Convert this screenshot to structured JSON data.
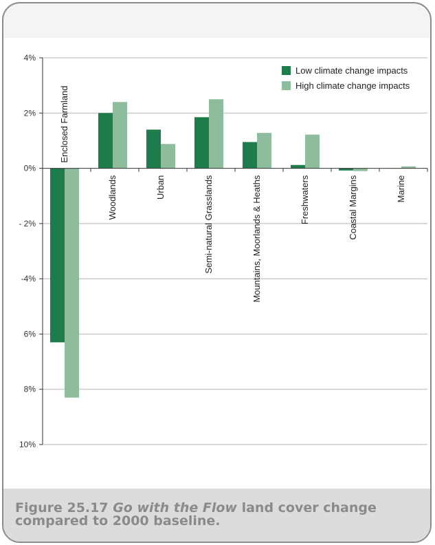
{
  "figure": {
    "caption_prefix": "Figure 25.17 ",
    "caption_italic": "Go with the Flow",
    "caption_suffix": " land cover change compared to 2000 baseline."
  },
  "chart_data": {
    "type": "bar",
    "categories": [
      "Enclosed Farmland",
      "Woodlands",
      "Urban",
      "Semi-natural Grasslands",
      "Mountains, Moorlands & Heaths",
      "Freshwaters",
      "Coastal Margins",
      "Marine"
    ],
    "series": [
      {
        "name": "Low climate change impacts",
        "color": "#1e7c4c",
        "values": [
          -6.3,
          2.0,
          1.4,
          1.85,
          0.95,
          0.12,
          -0.08,
          0.0
        ]
      },
      {
        "name": "High climate change impacts",
        "color": "#8dbd9c",
        "values": [
          -8.3,
          2.4,
          0.88,
          2.5,
          1.28,
          1.22,
          -0.1,
          0.07
        ]
      }
    ],
    "ylim": [
      -10,
      4
    ],
    "yticks": [
      {
        "value": 4,
        "label": "4%"
      },
      {
        "value": 2,
        "label": "2%"
      },
      {
        "value": 0,
        "label": "0%"
      },
      {
        "value": -2,
        "label": "- 2%"
      },
      {
        "value": -4,
        "label": "-4%"
      },
      {
        "value": -6,
        "label": "6%"
      },
      {
        "value": -8,
        "label": "8%"
      },
      {
        "value": -10,
        "label": "10%"
      }
    ],
    "grid": true,
    "legend": "top-right"
  }
}
